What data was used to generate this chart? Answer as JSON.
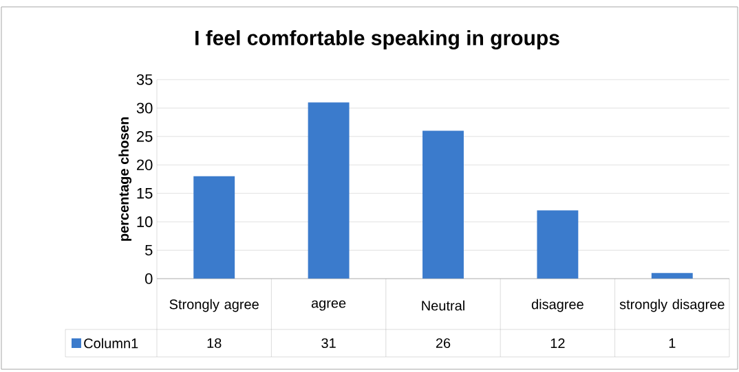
{
  "chart_data": {
    "type": "bar",
    "title": "I feel comfortable speaking in groups",
    "ylabel": "percentage  chosen",
    "categories": [
      "Strongly agree",
      "agree",
      "Neutral",
      "disagree",
      "strongly disagree"
    ],
    "series": [
      {
        "name": "Column1",
        "color": "#3b7bcc",
        "values": [
          18,
          31,
          26,
          12,
          1
        ]
      }
    ],
    "ylim": [
      0,
      35
    ],
    "yticks": [
      0,
      5,
      10,
      15,
      20,
      25,
      30,
      35
    ],
    "grid": "y",
    "legend": "bottom",
    "data_labels": true
  }
}
